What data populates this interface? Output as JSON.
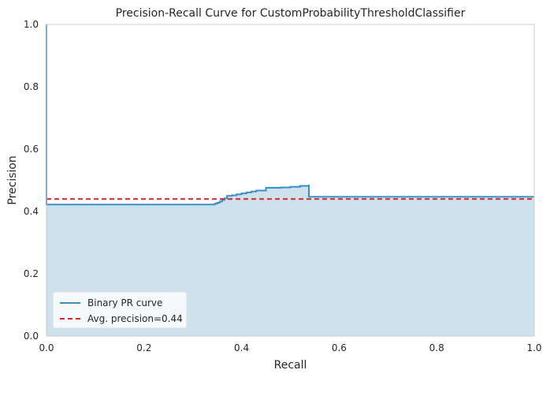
{
  "chart_data": {
    "type": "line",
    "title": "Precision-Recall Curve for CustomProbabilityThresholdClassifier",
    "xlabel": "Recall",
    "ylabel": "Precision",
    "xlim": [
      0,
      1
    ],
    "ylim": [
      0,
      1
    ],
    "x_ticks": [
      "0.0",
      "0.2",
      "0.4",
      "0.6",
      "0.8",
      "1.0"
    ],
    "y_ticks": [
      "0.0",
      "0.2",
      "0.4",
      "0.6",
      "0.8",
      "1.0"
    ],
    "grid": false,
    "legend_position": "lower-left",
    "series": [
      {
        "name": "Binary PR curve",
        "kind": "step",
        "color": "#3a8fc4",
        "fill_color": "#cde2ed",
        "x": [
          0.0,
          0.0,
          0.34,
          0.345,
          0.35,
          0.355,
          0.36,
          0.365,
          0.37,
          0.38,
          0.39,
          0.4,
          0.41,
          0.42,
          0.43,
          0.45,
          0.48,
          0.5,
          0.52,
          0.538,
          0.538,
          0.6,
          0.7,
          0.8,
          0.9,
          1.0
        ],
        "y": [
          1.0,
          0.422,
          0.422,
          0.425,
          0.428,
          0.432,
          0.437,
          0.442,
          0.45,
          0.452,
          0.455,
          0.458,
          0.461,
          0.464,
          0.467,
          0.476,
          0.477,
          0.479,
          0.482,
          0.486,
          0.447,
          0.447,
          0.447,
          0.447,
          0.447,
          0.447
        ]
      },
      {
        "name": "Avg. precision=0.44",
        "kind": "hline",
        "color": "#d62728",
        "dash": true,
        "y": 0.44
      }
    ]
  }
}
